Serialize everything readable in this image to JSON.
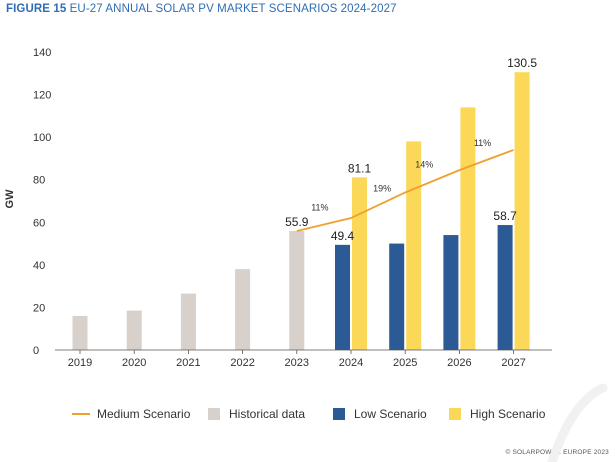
{
  "figure": {
    "number": "FIGURE 15",
    "title": "EU-27 ANNUAL SOLAR PV MARKET SCENARIOS 2024-2027"
  },
  "chart_data": {
    "type": "bar",
    "ylabel": "GW",
    "ylim": [
      0,
      140
    ],
    "yticks": [
      0,
      20,
      40,
      60,
      80,
      100,
      120,
      140
    ],
    "grid": false,
    "legend_position": "bottom",
    "categories": [
      "2019",
      "2020",
      "2021",
      "2022",
      "2023",
      "2024",
      "2025",
      "2026",
      "2027"
    ],
    "historical": [
      {
        "year": "2019",
        "value": 16.0
      },
      {
        "year": "2020",
        "value": 18.5
      },
      {
        "year": "2021",
        "value": 26.5
      },
      {
        "year": "2022",
        "value": 38.0
      },
      {
        "year": "2023",
        "value": 55.9,
        "label": "55.9"
      }
    ],
    "low": [
      {
        "year": "2024",
        "value": 49.4,
        "label": "49.4"
      },
      {
        "year": "2025",
        "value": 50.0
      },
      {
        "year": "2026",
        "value": 54.0
      },
      {
        "year": "2027",
        "value": 58.7,
        "label": "58.7"
      }
    ],
    "high": [
      {
        "year": "2024",
        "value": 81.1,
        "label": "81.1"
      },
      {
        "year": "2025",
        "value": 98.0
      },
      {
        "year": "2026",
        "value": 114.0
      },
      {
        "year": "2027",
        "value": 130.5,
        "label": "130.5"
      }
    ],
    "medium": {
      "points": [
        {
          "year": "2023",
          "value": 55.9
        },
        {
          "year": "2024",
          "value": 62.0
        },
        {
          "year": "2025",
          "value": 74.0
        },
        {
          "year": "2026",
          "value": 84.5
        },
        {
          "year": "2027",
          "value": 94.0
        }
      ],
      "growth_labels": [
        {
          "between": [
            "2023",
            "2024"
          ],
          "label": "11%"
        },
        {
          "between": [
            "2024",
            "2025"
          ],
          "label": "19%"
        },
        {
          "between": [
            "2025",
            "2026"
          ],
          "label": "14%"
        },
        {
          "between": [
            "2026",
            "2027"
          ],
          "label": "11%"
        }
      ]
    },
    "legend": [
      {
        "key": "medium",
        "label": "Medium Scenario"
      },
      {
        "key": "historical",
        "label": "Historical data"
      },
      {
        "key": "low",
        "label": "Low Scenario"
      },
      {
        "key": "high",
        "label": "High Scenario"
      }
    ],
    "colors": {
      "historical": "#d8d0cb",
      "low": "#2c5a94",
      "high": "#fbd858",
      "medium": "#f0a030",
      "axis": "#555555",
      "text": "#333333",
      "title": "#2f6db3"
    }
  },
  "credit": "© SOLARPOWER EUROPE 2023"
}
